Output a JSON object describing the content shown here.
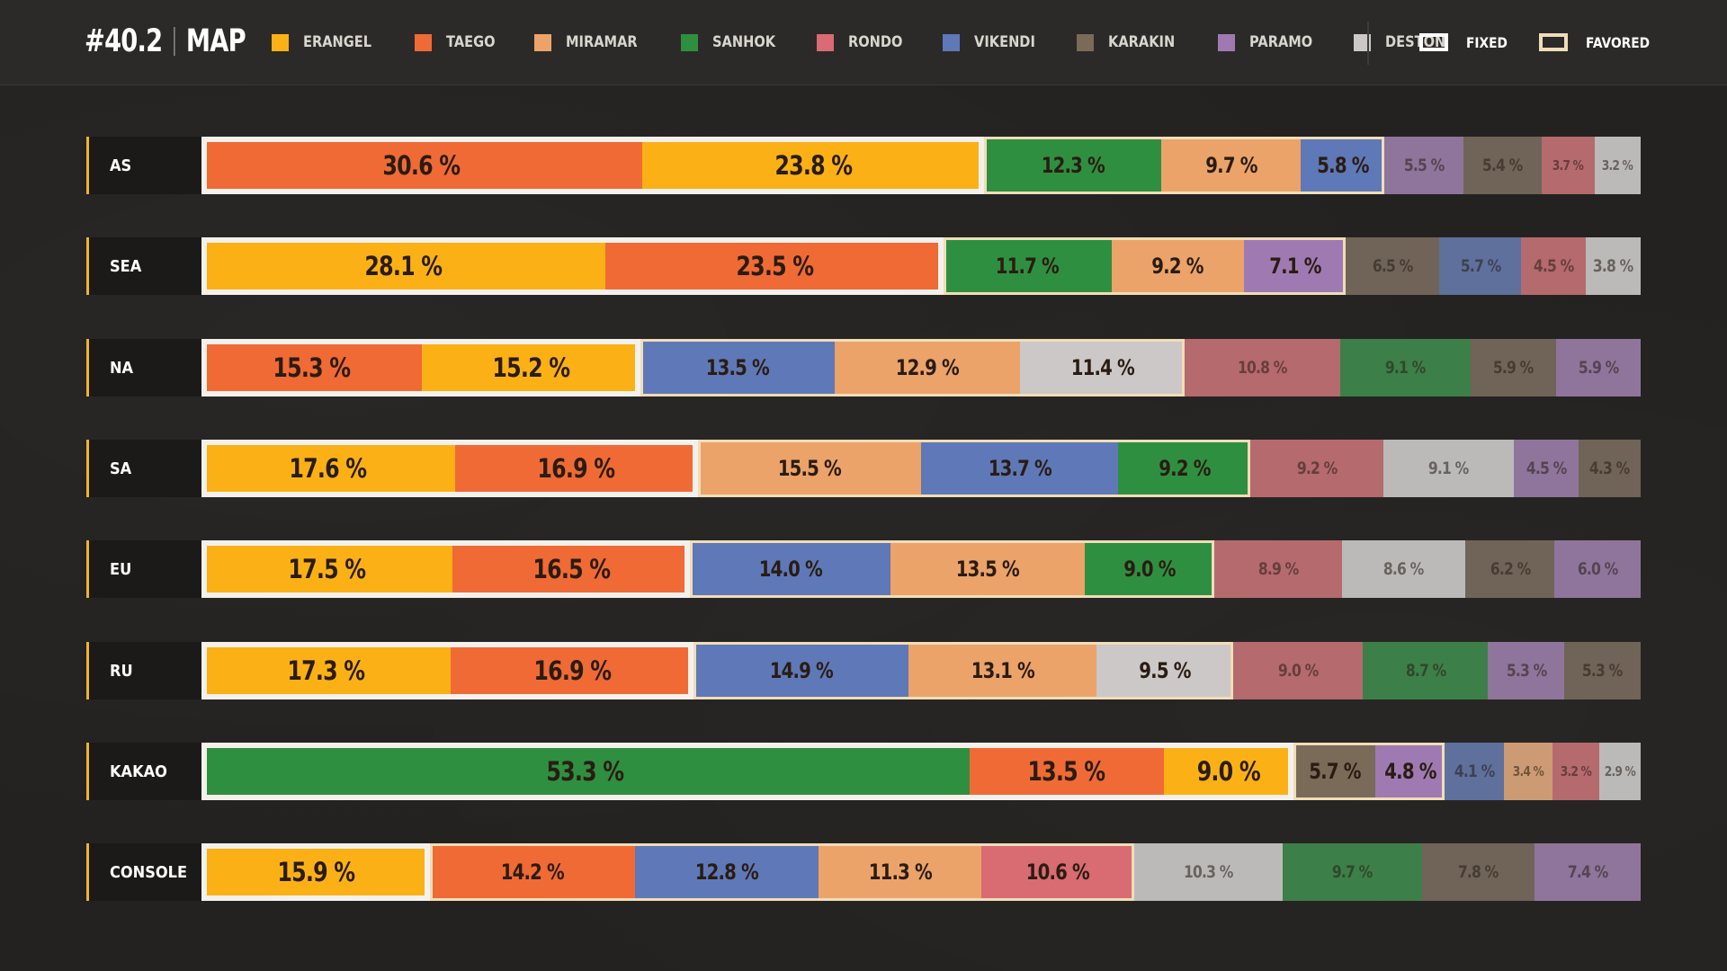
{
  "header": {
    "tag": "#40.2",
    "title": "MAP"
  },
  "map_colors": {
    "ERANGEL": "#fbb116",
    "TAEGO": "#f06a35",
    "MIRAMAR": "#eba36a",
    "SANHOK": "#2f8f40",
    "RONDO": "#d96b72",
    "VIKENDI": "#5f78b8",
    "KARAKIN": "#7a6a58",
    "PARAMO": "#9f7ab2",
    "DESTON": "#cbc8c7"
  },
  "legend": [
    {
      "label": "ERANGEL",
      "color": "#fbb116"
    },
    {
      "label": "TAEGO",
      "color": "#f06a35"
    },
    {
      "label": "MIRAMAR",
      "color": "#eba36a"
    },
    {
      "label": "SANHOK",
      "color": "#2f8f40"
    },
    {
      "label": "RONDO",
      "color": "#d96b72"
    },
    {
      "label": "VIKENDI",
      "color": "#5f78b8"
    },
    {
      "label": "KARAKIN",
      "color": "#7a6a58"
    },
    {
      "label": "PARAMO",
      "color": "#9f7ab2"
    },
    {
      "label": "DESTON",
      "color": "#cbc8c7"
    }
  ],
  "keys": {
    "fixed_label": "FIXED",
    "favored_label": "FAVORED"
  },
  "chart_data": {
    "type": "bar",
    "orientation": "horizontal",
    "stacked": true,
    "value_unit": "%",
    "rows": [
      {
        "region": "AS",
        "segments": [
          {
            "map": "TAEGO",
            "value": 30.6,
            "label": "30.6 %",
            "group": "fixed"
          },
          {
            "map": "ERANGEL",
            "value": 23.8,
            "label": "23.8 %",
            "group": "fixed"
          },
          {
            "map": "SANHOK",
            "value": 12.3,
            "label": "12.3 %",
            "group": "favored"
          },
          {
            "map": "MIRAMAR",
            "value": 9.7,
            "label": "9.7 %",
            "group": "favored"
          },
          {
            "map": "VIKENDI",
            "value": 5.8,
            "label": "5.8 %",
            "group": "favored"
          },
          {
            "map": "PARAMO",
            "value": 5.5,
            "label": "5.5 %",
            "group": "rest"
          },
          {
            "map": "KARAKIN",
            "value": 5.4,
            "label": "5.4 %",
            "group": "rest"
          },
          {
            "map": "RONDO",
            "value": 3.7,
            "label": "3.7 %",
            "group": "rest"
          },
          {
            "map": "DESTON",
            "value": 3.2,
            "label": "3.2 %",
            "group": "rest"
          }
        ]
      },
      {
        "region": "SEA",
        "segments": [
          {
            "map": "ERANGEL",
            "value": 28.1,
            "label": "28.1 %",
            "group": "fixed"
          },
          {
            "map": "TAEGO",
            "value": 23.5,
            "label": "23.5 %",
            "group": "fixed"
          },
          {
            "map": "SANHOK",
            "value": 11.7,
            "label": "11.7 %",
            "group": "favored"
          },
          {
            "map": "MIRAMAR",
            "value": 9.2,
            "label": "9.2 %",
            "group": "favored"
          },
          {
            "map": "PARAMO",
            "value": 7.1,
            "label": "7.1 %",
            "group": "favored"
          },
          {
            "map": "KARAKIN",
            "value": 6.5,
            "label": "6.5 %",
            "group": "rest"
          },
          {
            "map": "VIKENDI",
            "value": 5.7,
            "label": "5.7 %",
            "group": "rest"
          },
          {
            "map": "RONDO",
            "value": 4.5,
            "label": "4.5 %",
            "group": "rest"
          },
          {
            "map": "DESTON",
            "value": 3.8,
            "label": "3.8 %",
            "group": "rest"
          }
        ]
      },
      {
        "region": "NA",
        "segments": [
          {
            "map": "TAEGO",
            "value": 15.3,
            "label": "15.3 %",
            "group": "fixed"
          },
          {
            "map": "ERANGEL",
            "value": 15.2,
            "label": "15.2 %",
            "group": "fixed"
          },
          {
            "map": "VIKENDI",
            "value": 13.5,
            "label": "13.5 %",
            "group": "favored"
          },
          {
            "map": "MIRAMAR",
            "value": 12.9,
            "label": "12.9 %",
            "group": "favored"
          },
          {
            "map": "DESTON",
            "value": 11.4,
            "label": "11.4 %",
            "group": "favored"
          },
          {
            "map": "RONDO",
            "value": 10.8,
            "label": "10.8 %",
            "group": "rest"
          },
          {
            "map": "SANHOK",
            "value": 9.1,
            "label": "9.1 %",
            "group": "rest"
          },
          {
            "map": "KARAKIN",
            "value": 5.9,
            "label": "5.9 %",
            "group": "rest"
          },
          {
            "map": "PARAMO",
            "value": 5.9,
            "label": "5.9 %",
            "group": "rest"
          }
        ]
      },
      {
        "region": "SA",
        "segments": [
          {
            "map": "ERANGEL",
            "value": 17.6,
            "label": "17.6 %",
            "group": "fixed"
          },
          {
            "map": "TAEGO",
            "value": 16.9,
            "label": "16.9 %",
            "group": "fixed"
          },
          {
            "map": "MIRAMAR",
            "value": 15.5,
            "label": "15.5 %",
            "group": "favored"
          },
          {
            "map": "VIKENDI",
            "value": 13.7,
            "label": "13.7 %",
            "group": "favored"
          },
          {
            "map": "SANHOK",
            "value": 9.2,
            "label": "9.2 %",
            "group": "favored"
          },
          {
            "map": "RONDO",
            "value": 9.2,
            "label": "9.2 %",
            "group": "rest"
          },
          {
            "map": "DESTON",
            "value": 9.1,
            "label": "9.1 %",
            "group": "rest"
          },
          {
            "map": "PARAMO",
            "value": 4.5,
            "label": "4.5 %",
            "group": "rest"
          },
          {
            "map": "KARAKIN",
            "value": 4.3,
            "label": "4.3 %",
            "group": "rest"
          }
        ]
      },
      {
        "region": "EU",
        "segments": [
          {
            "map": "ERANGEL",
            "value": 17.5,
            "label": "17.5 %",
            "group": "fixed"
          },
          {
            "map": "TAEGO",
            "value": 16.5,
            "label": "16.5 %",
            "group": "fixed"
          },
          {
            "map": "VIKENDI",
            "value": 14.0,
            "label": "14.0 %",
            "group": "favored"
          },
          {
            "map": "MIRAMAR",
            "value": 13.5,
            "label": "13.5 %",
            "group": "favored"
          },
          {
            "map": "SANHOK",
            "value": 9.0,
            "label": "9.0 %",
            "group": "favored"
          },
          {
            "map": "RONDO",
            "value": 8.9,
            "label": "8.9 %",
            "group": "rest"
          },
          {
            "map": "DESTON",
            "value": 8.6,
            "label": "8.6 %",
            "group": "rest"
          },
          {
            "map": "KARAKIN",
            "value": 6.2,
            "label": "6.2 %",
            "group": "rest"
          },
          {
            "map": "PARAMO",
            "value": 6.0,
            "label": "6.0 %",
            "group": "rest"
          }
        ]
      },
      {
        "region": "RU",
        "segments": [
          {
            "map": "ERANGEL",
            "value": 17.3,
            "label": "17.3 %",
            "group": "fixed"
          },
          {
            "map": "TAEGO",
            "value": 16.9,
            "label": "16.9 %",
            "group": "fixed"
          },
          {
            "map": "VIKENDI",
            "value": 14.9,
            "label": "14.9 %",
            "group": "favored"
          },
          {
            "map": "MIRAMAR",
            "value": 13.1,
            "label": "13.1 %",
            "group": "favored"
          },
          {
            "map": "DESTON",
            "value": 9.5,
            "label": "9.5 %",
            "group": "favored"
          },
          {
            "map": "RONDO",
            "value": 9.0,
            "label": "9.0 %",
            "group": "rest"
          },
          {
            "map": "SANHOK",
            "value": 8.7,
            "label": "8.7 %",
            "group": "rest"
          },
          {
            "map": "PARAMO",
            "value": 5.3,
            "label": "5.3 %",
            "group": "rest"
          },
          {
            "map": "KARAKIN",
            "value": 5.3,
            "label": "5.3 %",
            "group": "rest"
          }
        ]
      },
      {
        "region": "KAKAO",
        "segments": [
          {
            "map": "SANHOK",
            "value": 53.3,
            "label": "53.3 %",
            "group": "fixed"
          },
          {
            "map": "TAEGO",
            "value": 13.5,
            "label": "13.5 %",
            "group": "fixed"
          },
          {
            "map": "ERANGEL",
            "value": 9.0,
            "label": "9.0 %",
            "group": "fixed"
          },
          {
            "map": "KARAKIN",
            "value": 5.7,
            "label": "5.7 %",
            "group": "favored"
          },
          {
            "map": "PARAMO",
            "value": 4.8,
            "label": "4.8 %",
            "group": "favored"
          },
          {
            "map": "VIKENDI",
            "value": 4.1,
            "label": "4.1 %",
            "group": "rest"
          },
          {
            "map": "MIRAMAR",
            "value": 3.4,
            "label": "3.4 %",
            "group": "rest"
          },
          {
            "map": "RONDO",
            "value": 3.2,
            "label": "3.2 %",
            "group": "rest"
          },
          {
            "map": "DESTON",
            "value": 2.9,
            "label": "2.9 %",
            "group": "rest"
          }
        ]
      },
      {
        "region": "CONSOLE",
        "segments": [
          {
            "map": "ERANGEL",
            "value": 15.9,
            "label": "15.9 %",
            "group": "fixed"
          },
          {
            "map": "TAEGO",
            "value": 14.2,
            "label": "14.2 %",
            "group": "favored"
          },
          {
            "map": "VIKENDI",
            "value": 12.8,
            "label": "12.8 %",
            "group": "favored"
          },
          {
            "map": "MIRAMAR",
            "value": 11.3,
            "label": "11.3 %",
            "group": "favored"
          },
          {
            "map": "RONDO",
            "value": 10.6,
            "label": "10.6 %",
            "group": "favored"
          },
          {
            "map": "DESTON",
            "value": 10.3,
            "label": "10.3 %",
            "group": "rest"
          },
          {
            "map": "SANHOK",
            "value": 9.7,
            "label": "9.7 %",
            "group": "rest"
          },
          {
            "map": "KARAKIN",
            "value": 7.8,
            "label": "7.8 %",
            "group": "rest"
          },
          {
            "map": "PARAMO",
            "value": 7.4,
            "label": "7.4 %",
            "group": "rest"
          }
        ]
      }
    ]
  }
}
